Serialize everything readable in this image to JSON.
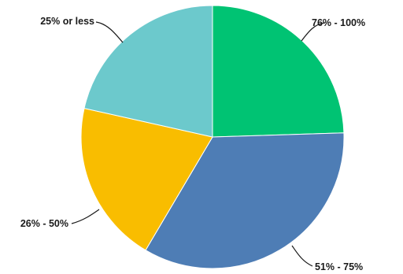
{
  "chart_data": {
    "type": "pie",
    "title": "",
    "legend": "none",
    "slices": [
      {
        "label": "76% - 100%",
        "value": 24.5,
        "color": "#00c373"
      },
      {
        "label": "51% - 75%",
        "value": 34.0,
        "color": "#4e7db5"
      },
      {
        "label": "26% - 50%",
        "value": 20.0,
        "color": "#f9bd00"
      },
      {
        "label": "25% or less",
        "value": 21.5,
        "color": "#6cc9cc"
      }
    ]
  }
}
